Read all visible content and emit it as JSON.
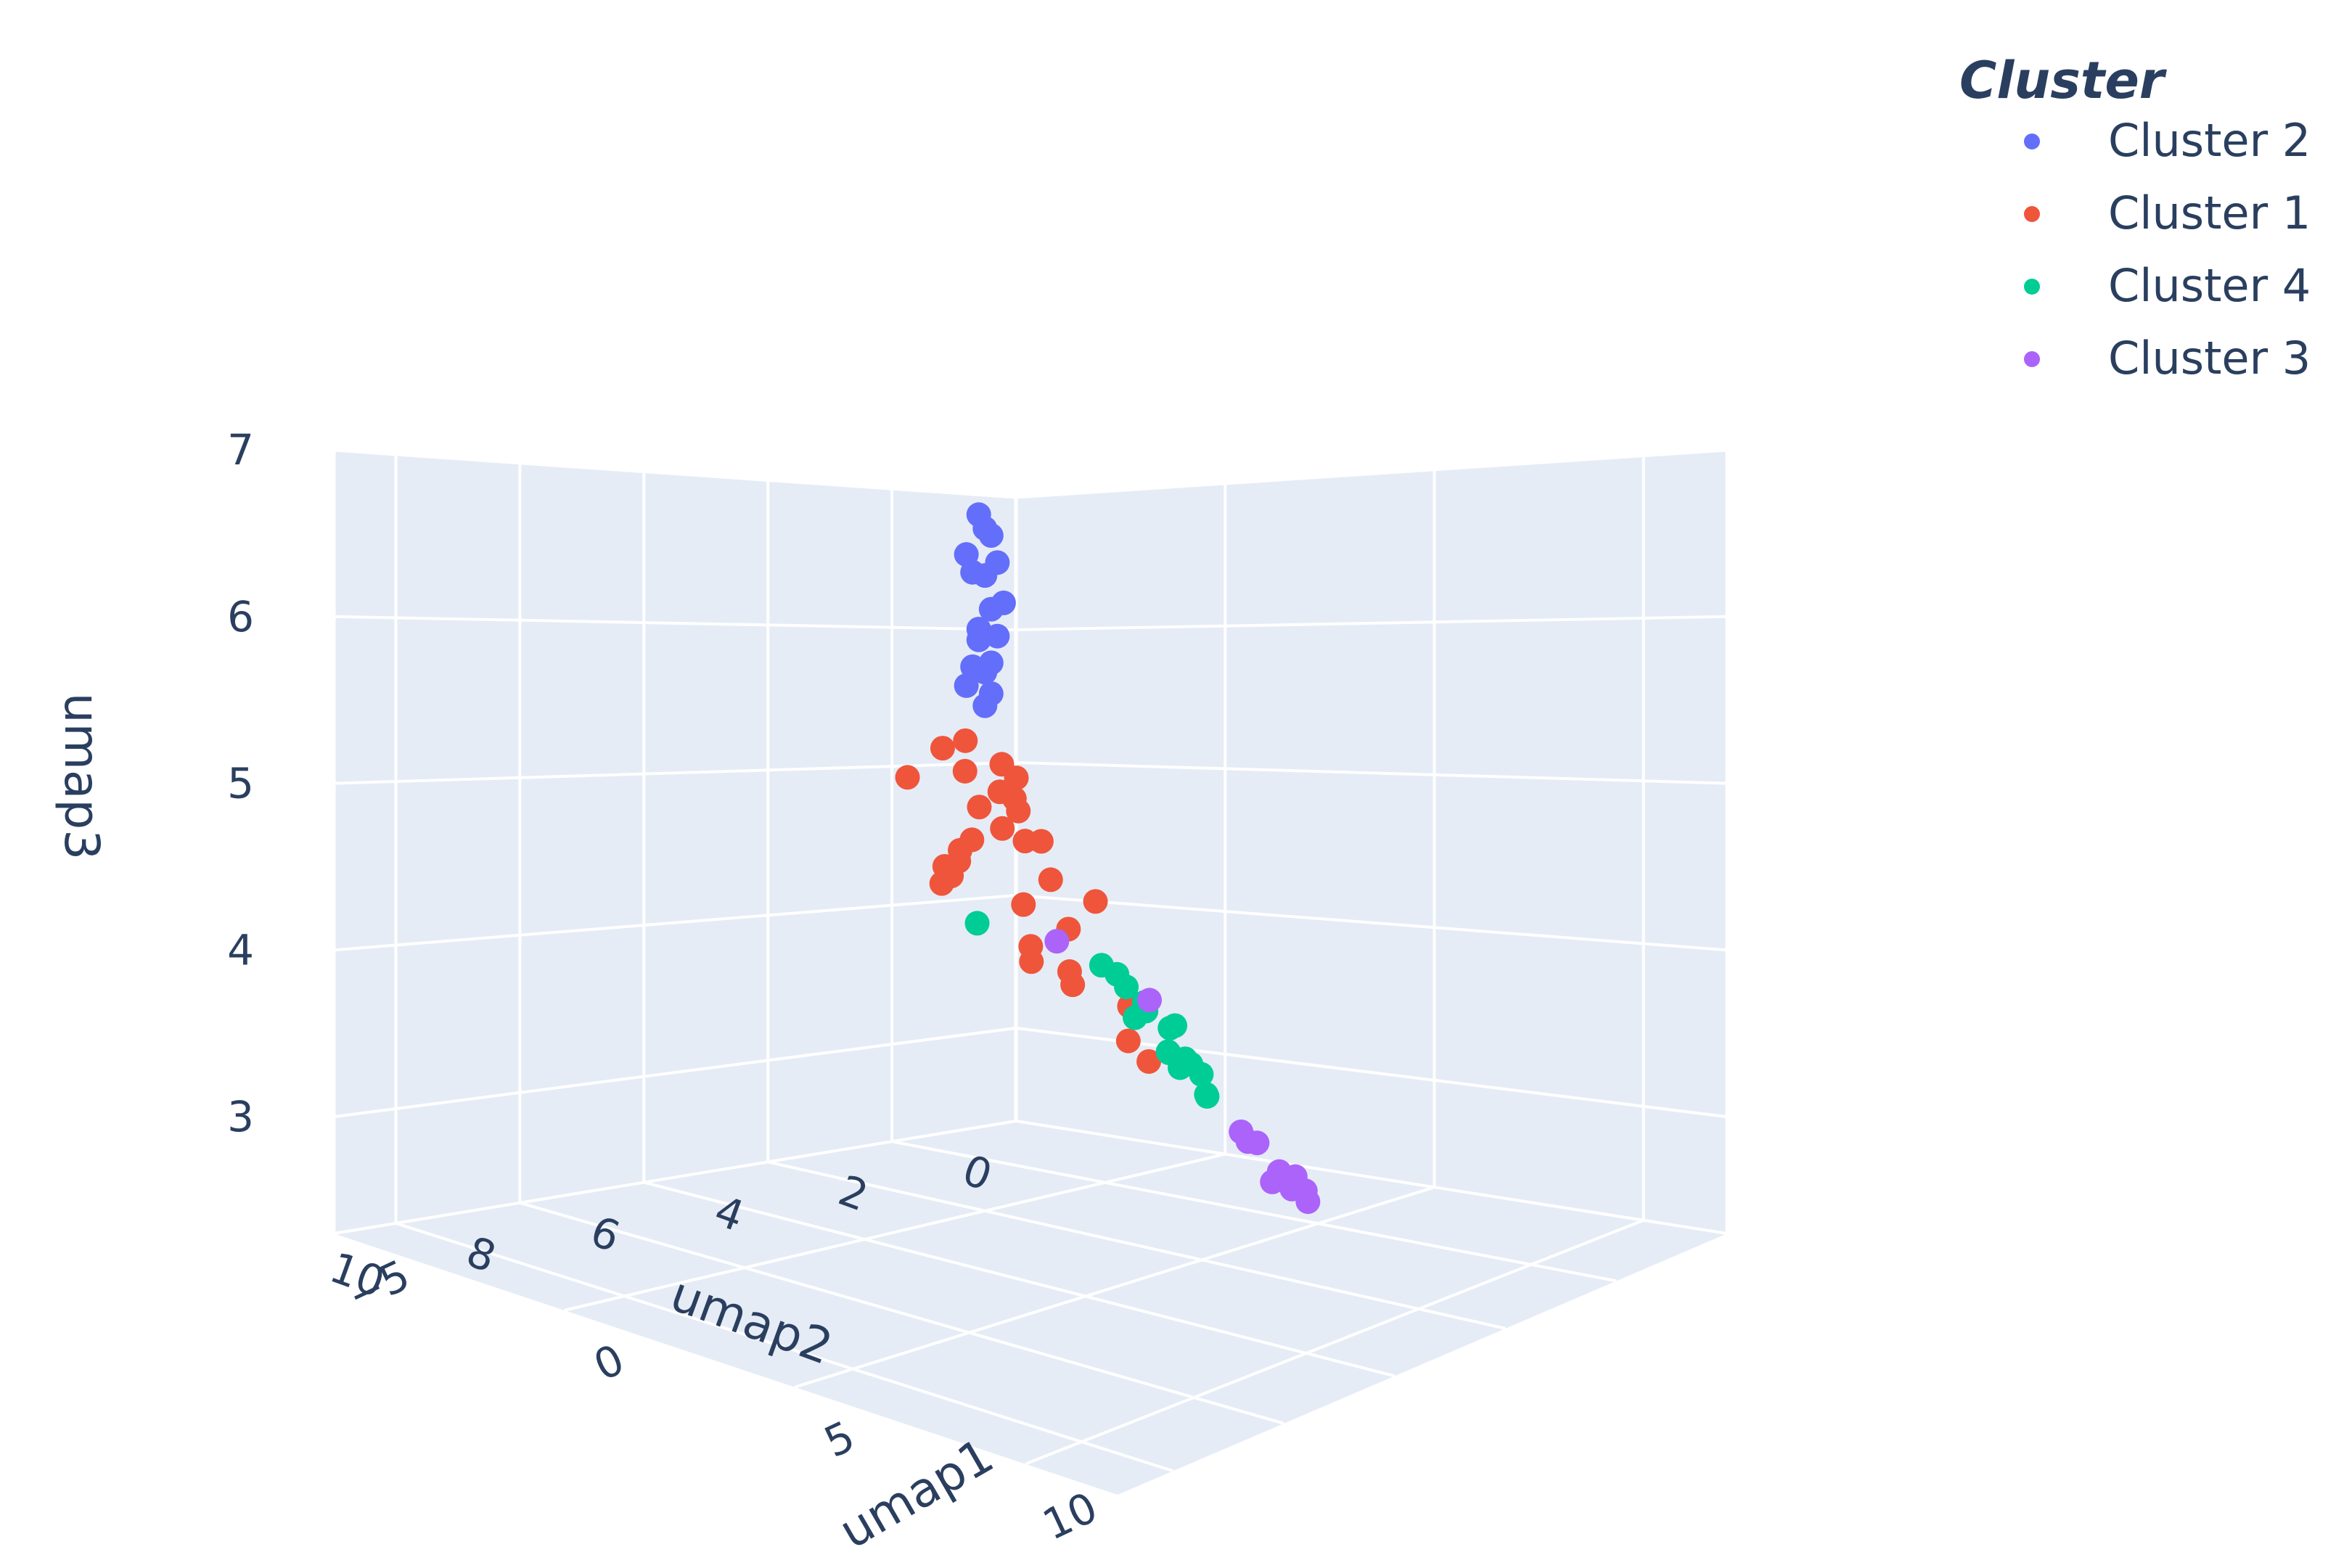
{
  "chart_data": {
    "type": "scatter",
    "dimensions": 3,
    "legend": {
      "title": "Cluster",
      "placement": "top-right",
      "entries": [
        {
          "name": "Cluster 2",
          "color": "#636efa"
        },
        {
          "name": "Cluster 1",
          "color": "#ef553b"
        },
        {
          "name": "Cluster 4",
          "color": "#00cc96"
        },
        {
          "name": "Cluster 3",
          "color": "#ab63fa"
        }
      ]
    },
    "axes": {
      "x": {
        "label": "umap1",
        "range": [
          -5,
          12
        ],
        "ticks": [
          "−5",
          "0",
          "5",
          "10"
        ],
        "tick_values": [
          -5,
          0,
          5,
          10
        ]
      },
      "y": {
        "label": "umap2",
        "range": [
          0,
          11
        ],
        "ticks": [
          "0",
          "2",
          "4",
          "6",
          "8",
          "10"
        ],
        "tick_values": [
          0,
          2,
          4,
          6,
          8,
          10
        ]
      },
      "z": {
        "label": "umap3",
        "range": [
          2.3,
          7
        ],
        "ticks": [
          "3",
          "4",
          "5",
          "6",
          "7"
        ],
        "tick_values": [
          3,
          4,
          5,
          6,
          7
        ]
      }
    },
    "grid": true,
    "series": [
      {
        "name": "Cluster 2",
        "color": "#636efa",
        "points": [
          {
            "x": -5,
            "y": 0.6,
            "z": 6.85
          },
          {
            "x": -5,
            "y": 0.5,
            "z": 6.75
          },
          {
            "x": -5,
            "y": 0.4,
            "z": 6.7
          },
          {
            "x": -5,
            "y": 0.3,
            "z": 6.5
          },
          {
            "x": -5,
            "y": 0.8,
            "z": 6.55
          },
          {
            "x": -5,
            "y": 0.5,
            "z": 6.4
          },
          {
            "x": -5,
            "y": 0.7,
            "z": 6.42
          },
          {
            "x": -5,
            "y": 0.2,
            "z": 6.2
          },
          {
            "x": -5,
            "y": 0.4,
            "z": 6.15
          },
          {
            "x": -5,
            "y": 0.6,
            "z": 6.0
          },
          {
            "x": -5,
            "y": 0.3,
            "z": 5.95
          },
          {
            "x": -5,
            "y": 0.6,
            "z": 5.92
          },
          {
            "x": -5,
            "y": 0.4,
            "z": 5.75
          },
          {
            "x": -5,
            "y": 0.7,
            "z": 5.72
          },
          {
            "x": -5,
            "y": 0.5,
            "z": 5.68
          },
          {
            "x": -5,
            "y": 0.8,
            "z": 5.58
          },
          {
            "x": -5,
            "y": 0.4,
            "z": 5.52
          },
          {
            "x": -5,
            "y": 0.5,
            "z": 5.43
          }
        ]
      },
      {
        "name": "Cluster 1",
        "color": "#ef553b",
        "points": [
          {
            "x": -4.0,
            "y": 1.5,
            "z": 5.2
          },
          {
            "x": -4.1,
            "y": 1.8,
            "z": 5.15
          },
          {
            "x": -4.6,
            "y": 0.5,
            "z": 5.0
          },
          {
            "x": -4.3,
            "y": 1.3,
            "z": 4.97
          },
          {
            "x": -4.2,
            "y": 2.3,
            "z": 4.95
          },
          {
            "x": -4.4,
            "y": 0.4,
            "z": 4.9
          },
          {
            "x": -4.5,
            "y": 0.6,
            "z": 4.8
          },
          {
            "x": -4.3,
            "y": 0.5,
            "z": 4.75
          },
          {
            "x": -4.4,
            "y": 1.0,
            "z": 4.7
          },
          {
            "x": -4.5,
            "y": 0.3,
            "z": 4.65
          },
          {
            "x": -4.0,
            "y": 0.9,
            "z": 4.55
          },
          {
            "x": -3.7,
            "y": 1.6,
            "z": 4.5
          },
          {
            "x": -3.4,
            "y": 2.0,
            "z": 4.45
          },
          {
            "x": -3.0,
            "y": 2.3,
            "z": 4.4
          },
          {
            "x": -2.9,
            "y": 2.6,
            "z": 4.38
          },
          {
            "x": -2.6,
            "y": 2.7,
            "z": 4.33
          },
          {
            "x": -2.4,
            "y": 3.0,
            "z": 4.3
          },
          {
            "x": -3.9,
            "y": 0.6,
            "z": 4.45
          },
          {
            "x": -4.1,
            "y": 0.2,
            "z": 4.43
          },
          {
            "x": -3.0,
            "y": 0.8,
            "z": 4.2
          },
          {
            "x": -2.2,
            "y": 1.8,
            "z": 4.1
          },
          {
            "x": -3.1,
            "y": 0.0,
            "z": 4.0
          },
          {
            "x": -2.0,
            "y": 1.2,
            "z": 3.9
          },
          {
            "x": -1.6,
            "y": 2.1,
            "z": 3.85
          },
          {
            "x": -1.3,
            "y": 2.3,
            "z": 3.77
          },
          {
            "x": -1.4,
            "y": 1.6,
            "z": 3.65
          },
          {
            "x": -0.9,
            "y": 1.9,
            "z": 3.6
          },
          {
            "x": -0.7,
            "y": 1.1,
            "z": 3.4
          },
          {
            "x": -0.3,
            "y": 1.4,
            "z": 3.2
          },
          {
            "x": -0.1,
            "y": 1.2,
            "z": 3.05
          }
        ]
      },
      {
        "name": "Cluster 4",
        "color": "#00cc96",
        "points": [
          {
            "x": -3.0,
            "y": 2.0,
            "z": 3.95
          },
          {
            "x": 0.2,
            "y": 2.2,
            "z": 3.8
          },
          {
            "x": 0.0,
            "y": 1.8,
            "z": 3.7
          },
          {
            "x": 0.5,
            "y": 2.0,
            "z": 3.65
          },
          {
            "x": 0.5,
            "y": 1.7,
            "z": 3.52
          },
          {
            "x": 0.4,
            "y": 1.6,
            "z": 3.45
          },
          {
            "x": 0.0,
            "y": 1.5,
            "z": 3.38
          },
          {
            "x": 0.8,
            "y": 1.4,
            "z": 3.35
          },
          {
            "x": 0.4,
            "y": 1.2,
            "z": 3.3
          },
          {
            "x": 1.5,
            "y": 2.0,
            "z": 3.25
          },
          {
            "x": 1.6,
            "y": 1.7,
            "z": 3.15
          },
          {
            "x": 0.9,
            "y": 1.3,
            "z": 3.12
          },
          {
            "x": 1.2,
            "y": 1.6,
            "z": 3.1
          },
          {
            "x": 1.0,
            "y": 1.1,
            "z": 3.0
          },
          {
            "x": -0.5,
            "y": 0.6,
            "z": 3.05
          },
          {
            "x": 2.1,
            "y": 1.8,
            "z": 2.98
          },
          {
            "x": 1.7,
            "y": 1.5,
            "z": 2.92
          }
        ]
      },
      {
        "name": "Cluster 3",
        "color": "#ab63fa",
        "points": [
          {
            "x": -1.7,
            "y": 1.6,
            "z": 3.85
          },
          {
            "x": 0.2,
            "y": 1.4,
            "z": 3.5
          },
          {
            "x": 2.5,
            "y": 1.5,
            "z": 2.72
          },
          {
            "x": 2.8,
            "y": 1.6,
            "z": 2.68
          },
          {
            "x": 2.6,
            "y": 1.3,
            "z": 2.63
          },
          {
            "x": 4.2,
            "y": 2.2,
            "z": 2.55
          },
          {
            "x": 3.4,
            "y": 1.5,
            "z": 2.5
          },
          {
            "x": 3.5,
            "y": 1.3,
            "z": 2.45
          },
          {
            "x": 3.7,
            "y": 1.5,
            "z": 2.4
          },
          {
            "x": 3.6,
            "y": 1.2,
            "z": 2.35
          },
          {
            "x": 3.8,
            "y": 1.3,
            "z": 2.3
          }
        ]
      }
    ]
  }
}
